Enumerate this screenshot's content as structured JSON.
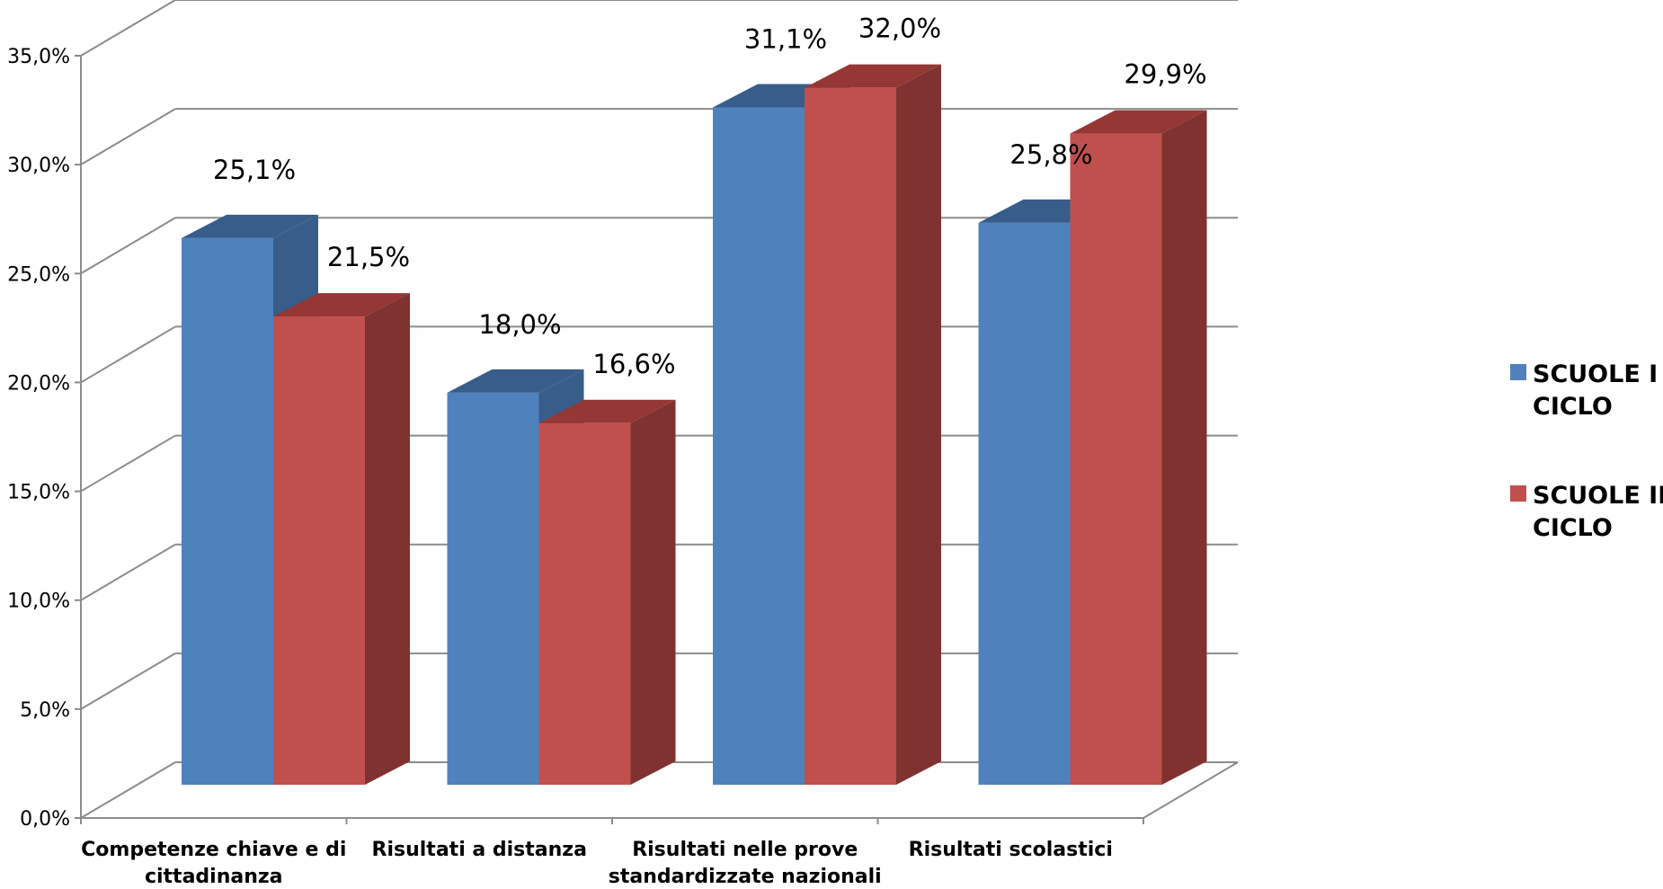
{
  "chart_data": {
    "type": "bar",
    "style": "3d-clustered-column",
    "categories": [
      [
        "Competenze chiave e di",
        "cittadinanza"
      ],
      [
        "Risultati a distanza"
      ],
      [
        "Risultati nelle prove",
        "standardizzate nazionali"
      ],
      [
        "Risultati scolastici"
      ]
    ],
    "series": [
      {
        "name": [
          "SCUOLE I",
          "CICLO"
        ],
        "values": [
          25.1,
          18.0,
          31.1,
          25.8
        ],
        "labels": [
          "25,1%",
          "18,0%",
          "31,1%",
          "25,8%"
        ],
        "color": "#4F81BD",
        "top_color": "#385D8A",
        "side_color": "#385D8A"
      },
      {
        "name": [
          "SCUOLE II",
          "CICLO"
        ],
        "values": [
          21.5,
          16.6,
          32.0,
          29.9
        ],
        "labels": [
          "21,5%",
          "16,6%",
          "32,0%",
          "29,9%"
        ],
        "color": "#C0504D",
        "top_color": "#953735",
        "side_color": "#7F3230"
      }
    ],
    "y_ticks": [
      "0,0%",
      "5,0%",
      "10,0%",
      "15,0%",
      "20,0%",
      "25,0%",
      "30,0%",
      "35,0%"
    ],
    "ylim": [
      0,
      35
    ],
    "grid": true,
    "legend_position": "right",
    "gridline_color": "#8C8C8C"
  }
}
